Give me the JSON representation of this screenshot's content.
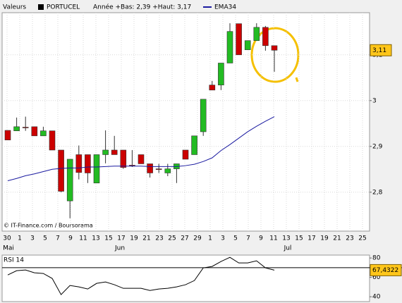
{
  "chart_data": [
    {
      "type": "candlestick",
      "source": "Valeurs",
      "symbol": "PORTUCEL",
      "subtitle": "Année +Bas: 2,39 +Haut: 3,17",
      "credit": "© IT-Finance.com / Boursorama",
      "xtick_labels": [
        "30",
        "1",
        "3",
        "5",
        "7",
        "9",
        "11",
        "13",
        "15",
        "17",
        "19",
        "21",
        "23",
        "25",
        "27",
        "29",
        "1",
        "3",
        "5",
        "7",
        "9",
        "11",
        "13",
        "15",
        "17",
        "19",
        "21",
        "23",
        "25"
      ],
      "months": [
        "Mai",
        "Jun",
        "Jul"
      ],
      "ylim": [
        2.715,
        3.192
      ],
      "yticks": [
        {
          "value": 2.8,
          "label": "2,8"
        },
        {
          "value": 2.9,
          "label": "2,9"
        },
        3,
        {
          "value": 3.1,
          "label": "3,1"
        }
      ],
      "grid": true,
      "up_color": "#22bb22",
      "down_color": "#cc0000",
      "open": [
        2.935,
        2.934,
        2.942,
        2.943,
        2.923,
        2.934,
        2.892,
        2.781,
        2.882,
        2.882,
        2.82,
        2.882,
        2.892,
        2.892,
        2.859,
        2.882,
        2.862,
        2.851,
        2.842,
        2.851,
        2.892,
        2.882,
        2.932,
        3.034,
        3.034,
        3.082,
        3.168,
        3.111,
        3.131,
        3.16,
        3.12
      ],
      "high": [
        2.935,
        2.963,
        2.965,
        2.943,
        2.943,
        2.934,
        2.892,
        2.872,
        2.902,
        2.882,
        2.882,
        2.935,
        2.923,
        2.892,
        2.892,
        2.882,
        2.862,
        2.862,
        2.862,
        2.862,
        2.892,
        2.923,
        3.003,
        3.043,
        3.082,
        3.169,
        3.168,
        3.131,
        3.169,
        3.163,
        3.12
      ],
      "low": [
        2.914,
        2.934,
        2.934,
        2.923,
        2.923,
        2.892,
        2.8,
        2.743,
        2.828,
        2.82,
        2.82,
        2.863,
        2.882,
        2.851,
        2.855,
        2.862,
        2.832,
        2.842,
        2.835,
        2.82,
        2.872,
        2.882,
        2.923,
        3.023,
        3.023,
        3.082,
        3.1,
        3.111,
        3.131,
        3.109,
        3.063
      ],
      "close": [
        2.914,
        2.943,
        2.941,
        2.923,
        2.934,
        2.892,
        2.802,
        2.872,
        2.843,
        2.842,
        2.882,
        2.892,
        2.882,
        2.854,
        2.858,
        2.862,
        2.842,
        2.85,
        2.851,
        2.862,
        2.872,
        2.923,
        3.003,
        3.023,
        3.082,
        3.151,
        3.1,
        3.131,
        3.16,
        3.12,
        3.11
      ],
      "series": [
        {
          "name": "EMA34",
          "color": "#1a1aa0",
          "values": [
            2.825,
            2.83,
            2.836,
            2.84,
            2.845,
            2.85,
            2.852,
            2.853,
            2.853,
            2.855,
            2.855,
            2.856,
            2.857,
            2.857,
            2.857,
            2.857,
            2.856,
            2.856,
            2.856,
            2.856,
            2.858,
            2.861,
            2.867,
            2.875,
            2.891,
            2.904,
            2.918,
            2.932,
            2.944,
            2.955,
            2.965
          ]
        }
      ],
      "last": {
        "value": 3.11,
        "label": "3,11"
      }
    },
    {
      "type": "line",
      "title": "RSI 14",
      "ylim": [
        35,
        83
      ],
      "yticks": [
        40,
        60,
        80
      ],
      "levels": [
        70
      ],
      "color": "#000000",
      "values": [
        62.5,
        66.9,
        67.6,
        64.7,
        64,
        58.9,
        42.2,
        51.6,
        50.2,
        48,
        53.8,
        55.3,
        52.4,
        48.7,
        48.7,
        48.7,
        46.5,
        48,
        48.7,
        50.2,
        52.4,
        56.7,
        69.8,
        71.3,
        76.4,
        80.7,
        74.9,
        74.9,
        77.1,
        69.8,
        67.4322
      ],
      "last": {
        "value": 67.4322,
        "label": "67,4322"
      }
    }
  ]
}
